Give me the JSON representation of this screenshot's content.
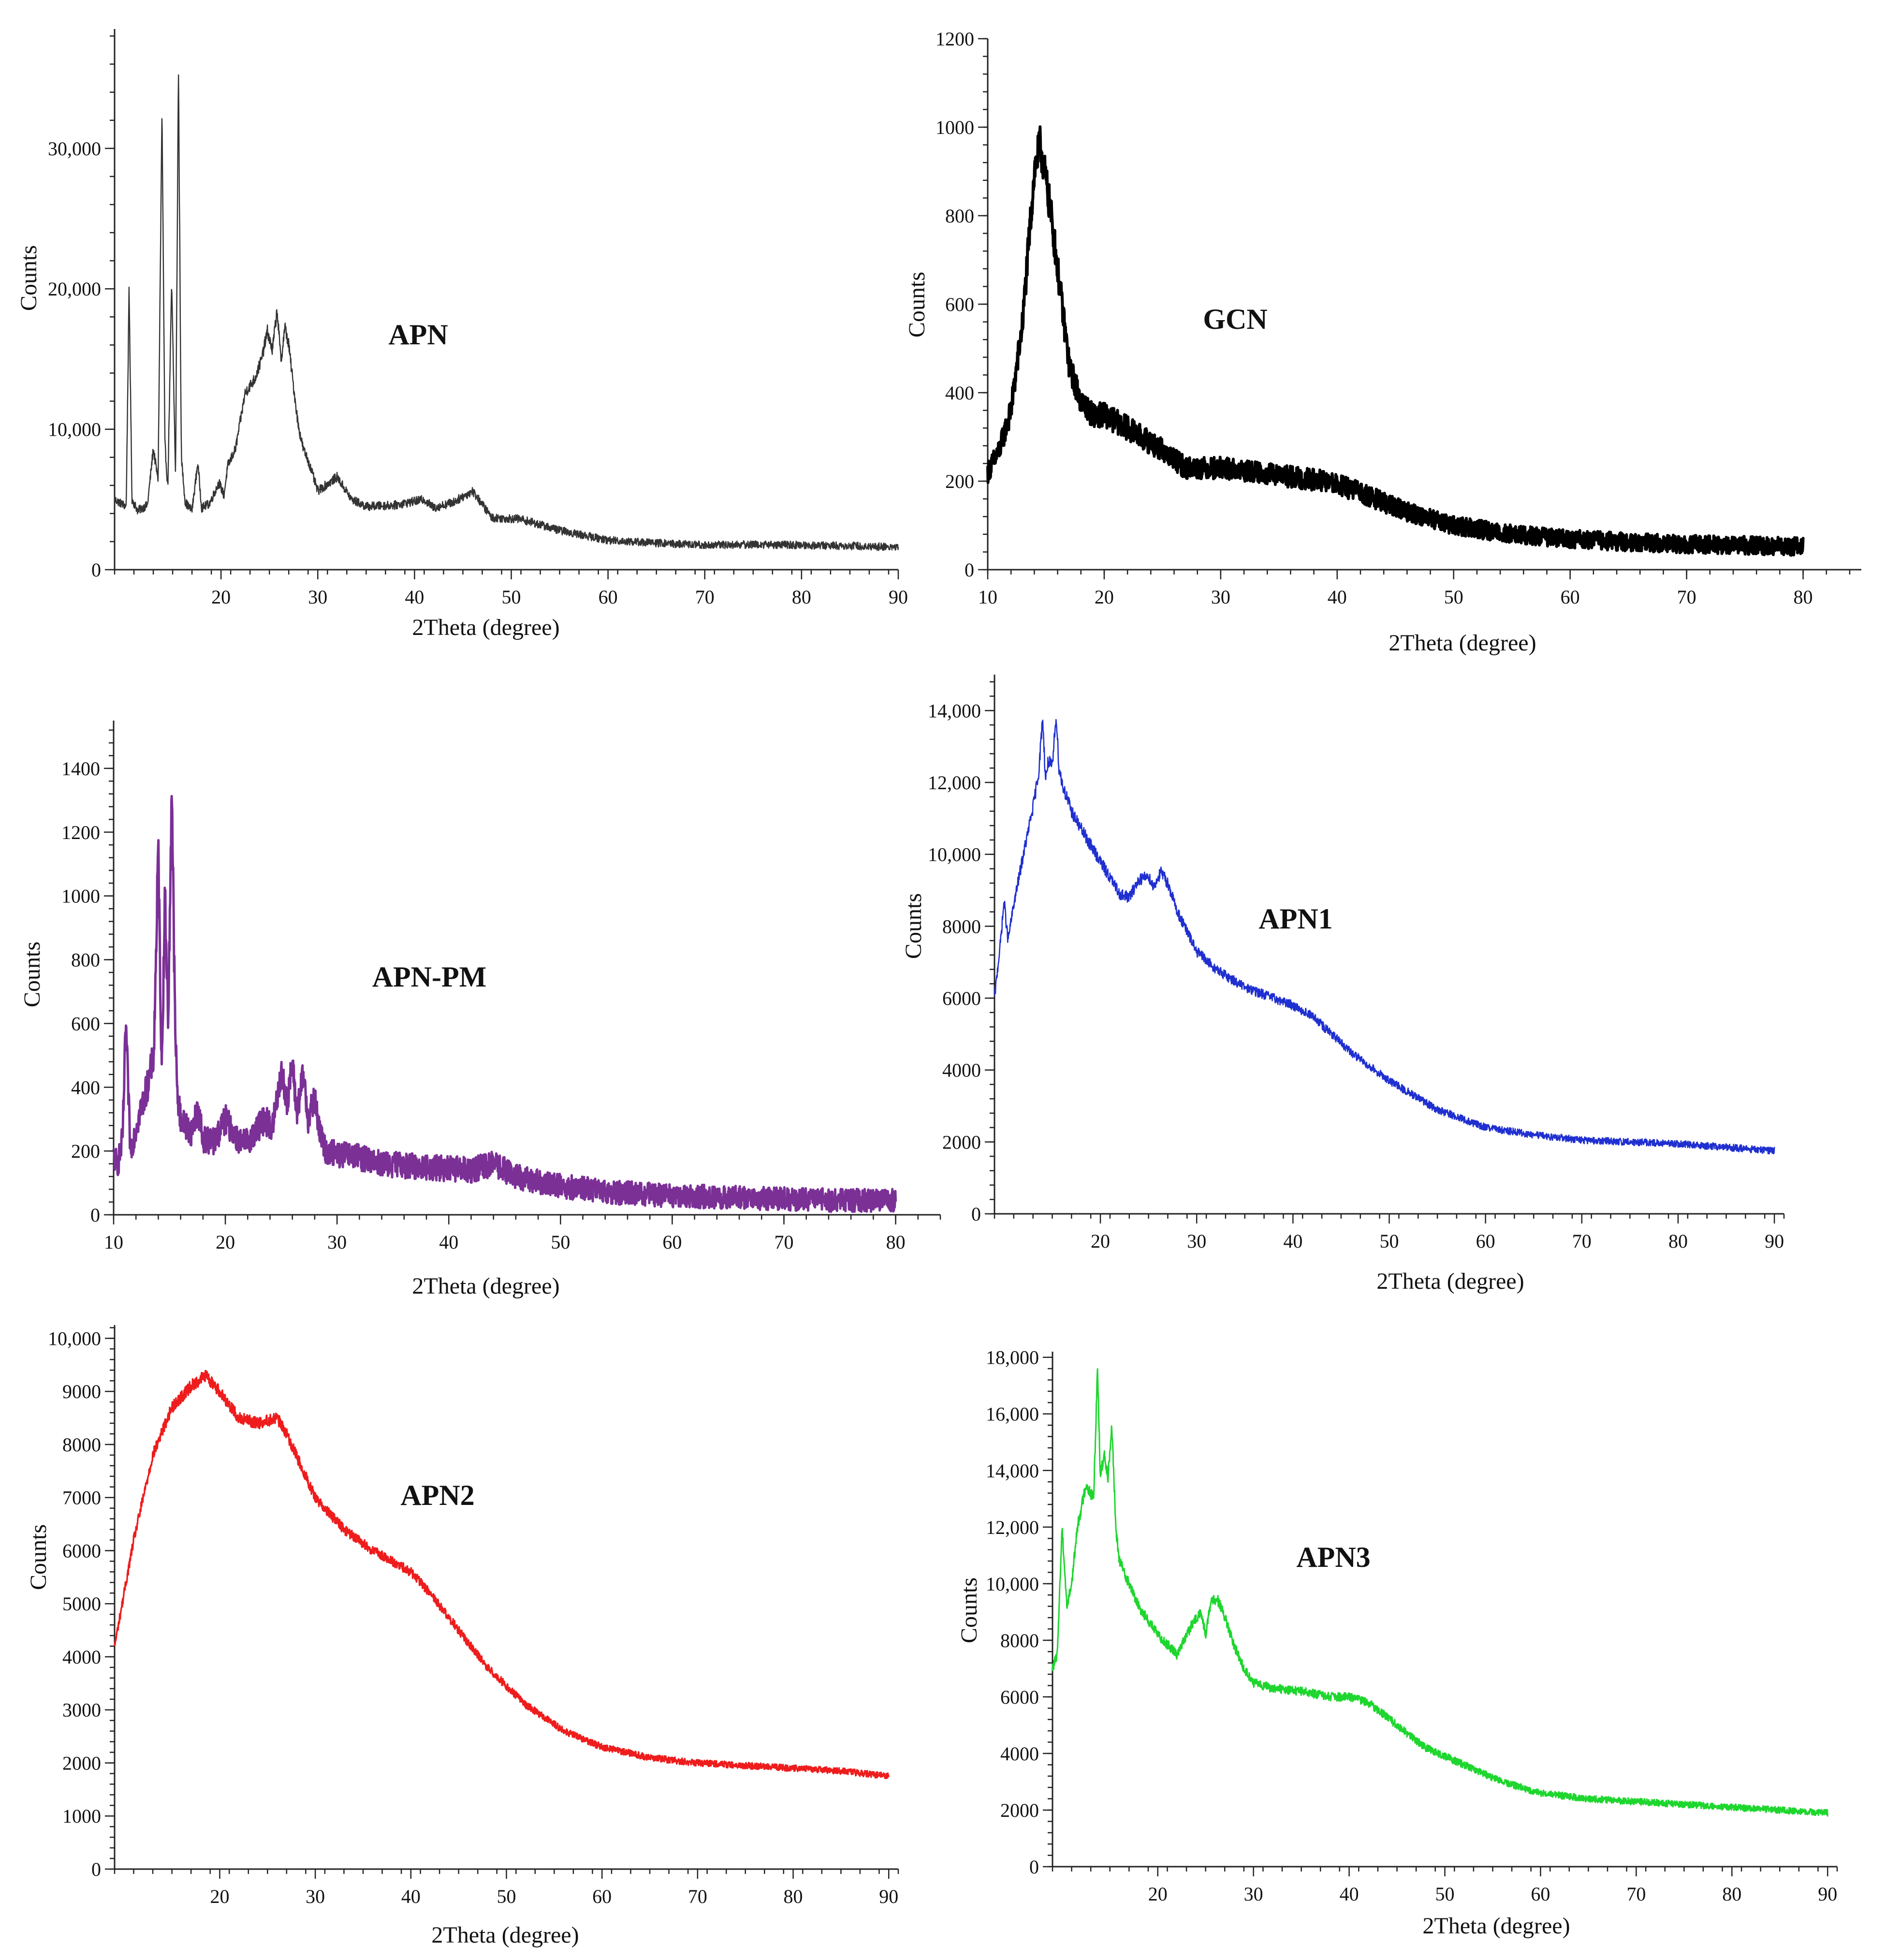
{
  "chart_data": [
    {
      "type": "line",
      "title": "APN",
      "xlabel": "2Theta (degree)",
      "ylabel": "Counts",
      "xlim": [
        9,
        90
      ],
      "ylim": [
        0,
        38500
      ],
      "xticks": [
        20,
        30,
        40,
        50,
        60,
        70,
        80,
        90
      ],
      "yticks": [
        0,
        10000,
        20000,
        30000
      ],
      "yticklabels": [
        "0",
        "10,000",
        "20,000",
        "30,000"
      ],
      "color": "#333333",
      "noise": 0.015,
      "series": [
        {
          "name": "APN",
          "x": [
            9,
            10.2,
            10.5,
            10.8,
            11.4,
            12.4,
            13.0,
            13.5,
            13.9,
            14.2,
            14.5,
            14.9,
            15.3,
            15.6,
            15.9,
            16.3,
            17.0,
            17.6,
            18.0,
            18.8,
            19.8,
            20.3,
            20.7,
            21.5,
            22.5,
            23.5,
            24.2,
            24.8,
            25.3,
            25.8,
            26.2,
            26.6,
            27.0,
            27.5,
            28.0,
            28.5,
            29.0,
            30.0,
            32.0,
            33.5,
            35,
            38,
            41,
            42,
            44,
            46,
            48,
            51,
            55,
            60,
            65,
            70,
            75,
            80,
            85,
            90
          ],
          "y": [
            5000,
            4500,
            20000,
            5000,
            4200,
            4600,
            8600,
            6400,
            32800,
            9000,
            5800,
            20400,
            6600,
            35900,
            8000,
            4800,
            4200,
            7600,
            4400,
            4700,
            6200,
            5300,
            7400,
            8600,
            12600,
            13600,
            15000,
            17000,
            15600,
            18500,
            14800,
            17300,
            16000,
            13000,
            10200,
            8600,
            7800,
            5600,
            6600,
            5000,
            4500,
            4600,
            5000,
            4400,
            4800,
            5600,
            3700,
            3600,
            2800,
            2100,
            1900,
            1750,
            1800,
            1750,
            1700,
            1600
          ]
        }
      ]
    },
    {
      "type": "line",
      "title": "GCN",
      "xlabel": "2Theta (degree)",
      "ylabel": "Counts",
      "xlim": [
        10,
        85
      ],
      "ylim": [
        0,
        1200
      ],
      "xticks": [
        10,
        20,
        30,
        40,
        50,
        60,
        70,
        80
      ],
      "yticks": [
        0,
        200,
        400,
        600,
        800,
        1000,
        1200
      ],
      "yticklabels": [
        "0",
        "200",
        "400",
        "600",
        "800",
        "1000",
        "1200"
      ],
      "color": "#000000",
      "noise": 0.035,
      "series": [
        {
          "name": "GCN",
          "x": [
            10,
            11,
            12,
            13,
            13.5,
            14,
            14.5,
            15,
            15.5,
            16,
            17,
            18,
            19,
            20,
            22,
            25,
            27,
            30,
            33,
            36,
            39,
            42,
            45,
            50,
            55,
            60,
            65,
            70,
            75,
            80
          ],
          "y": [
            220,
            270,
            360,
            560,
            730,
            900,
            960,
            880,
            790,
            680,
            460,
            380,
            350,
            350,
            320,
            270,
            230,
            230,
            220,
            210,
            200,
            175,
            140,
            100,
            80,
            70,
            62,
            58,
            55,
            52
          ]
        }
      ]
    },
    {
      "type": "line",
      "title": "APN-PM",
      "xlabel": "2Theta (degree)",
      "ylabel": "Counts",
      "xlim": [
        10,
        84
      ],
      "ylim": [
        0,
        1550
      ],
      "xticks": [
        10,
        20,
        30,
        40,
        50,
        60,
        70,
        80
      ],
      "yticks": [
        0,
        200,
        400,
        600,
        800,
        1000,
        1200,
        1400
      ],
      "yticklabels": [
        "0",
        "200",
        "400",
        "600",
        "800",
        "1000",
        "1200",
        "1400"
      ],
      "color": "#7b3096",
      "noise": 0.05,
      "series": [
        {
          "name": "APN-PM",
          "x": [
            10,
            10.4,
            10.8,
            11.1,
            11.5,
            12.2,
            13,
            13.6,
            14.0,
            14.3,
            14.6,
            14.9,
            15.2,
            15.5,
            15.7,
            16.0,
            16.4,
            17.0,
            17.5,
            18.0,
            19.0,
            20.0,
            20.5,
            21.5,
            22.5,
            23.5,
            24.2,
            25.0,
            25.5,
            26.0,
            26.4,
            27.0,
            27.4,
            28.0,
            28.5,
            29.0,
            30,
            32,
            34,
            38,
            42,
            44,
            46,
            50,
            55,
            60,
            65,
            70,
            75,
            80
          ],
          "y": [
            180,
            160,
            240,
            600,
            200,
            300,
            400,
            500,
            1150,
            450,
            1000,
            600,
            1370,
            600,
            380,
            300,
            280,
            260,
            330,
            240,
            230,
            300,
            270,
            220,
            250,
            300,
            270,
            450,
            350,
            470,
            320,
            440,
            300,
            360,
            250,
            200,
            190,
            180,
            160,
            150,
            140,
            160,
            120,
            90,
            70,
            60,
            55,
            50,
            45,
            45
          ]
        }
      ]
    },
    {
      "type": "line",
      "title": "APN1",
      "xlabel": "2Theta (degree)",
      "ylabel": "Counts",
      "xlim": [
        9,
        91
      ],
      "ylim": [
        0,
        15000
      ],
      "xticks": [
        20,
        30,
        40,
        50,
        60,
        70,
        80,
        90
      ],
      "yticks": [
        0,
        2000,
        4000,
        6000,
        8000,
        10000,
        12000,
        14000
      ],
      "yticklabels": [
        "0",
        "2000",
        "4000",
        "6000",
        "8000",
        "10,000",
        "12,000",
        "14,000"
      ],
      "color": "#1f2fd0",
      "noise": 0.012,
      "series": [
        {
          "name": "APN1",
          "x": [
            9,
            9.6,
            10.0,
            10.4,
            11,
            12,
            13,
            13.6,
            14.0,
            14.3,
            14.6,
            15.0,
            15.4,
            15.7,
            16.1,
            17,
            18,
            20,
            22,
            23,
            24,
            25,
            25.5,
            26.3,
            27,
            28,
            30,
            32,
            35,
            38,
            40,
            42,
            44,
            46,
            50,
            55,
            60,
            65,
            70,
            75,
            80,
            85,
            90
          ],
          "y": [
            6000,
            7500,
            8700,
            7600,
            8600,
            10000,
            11300,
            12300,
            13800,
            12100,
            12600,
            12400,
            13900,
            12400,
            11900,
            11200,
            10700,
            9800,
            8900,
            8800,
            9300,
            9400,
            9100,
            9500,
            9200,
            8400,
            7300,
            6800,
            6300,
            6000,
            5800,
            5500,
            5000,
            4500,
            3700,
            2900,
            2400,
            2200,
            2050,
            2000,
            1950,
            1850,
            1750
          ]
        }
      ]
    },
    {
      "type": "line",
      "title": "APN2",
      "xlabel": "2Theta (degree)",
      "ylabel": "Counts",
      "xlim": [
        9,
        91
      ],
      "ylim": [
        0,
        10250
      ],
      "xticks": [
        20,
        30,
        40,
        50,
        60,
        70,
        80,
        90
      ],
      "yticks": [
        0,
        1000,
        2000,
        3000,
        4000,
        5000,
        6000,
        7000,
        8000,
        9000,
        10000
      ],
      "yticklabels": [
        "0",
        "1000",
        "2000",
        "3000",
        "4000",
        "5000",
        "6000",
        "7000",
        "8000",
        "9000",
        "10,000"
      ],
      "color": "#ee1c1c",
      "noise": 0.01,
      "series": [
        {
          "name": "APN2",
          "x": [
            9,
            11,
            13,
            15,
            17,
            18.5,
            20,
            22,
            24,
            26,
            27,
            28,
            30,
            33,
            36,
            40,
            42,
            45,
            48,
            52,
            56,
            60,
            65,
            70,
            75,
            80,
            85,
            90
          ],
          "y": [
            4200,
            6200,
            7800,
            8700,
            9100,
            9300,
            9000,
            8500,
            8400,
            8500,
            8200,
            7800,
            7000,
            6400,
            6000,
            5600,
            5200,
            4500,
            3800,
            3100,
            2600,
            2300,
            2100,
            2000,
            1950,
            1900,
            1850,
            1750
          ]
        }
      ]
    },
    {
      "type": "line",
      "title": "APN3",
      "xlabel": "2Theta (degree)",
      "ylabel": "Counts",
      "xlim": [
        9,
        91
      ],
      "ylim": [
        0,
        18200
      ],
      "xticks": [
        20,
        30,
        40,
        50,
        60,
        70,
        80,
        90
      ],
      "yticks": [
        0,
        2000,
        4000,
        6000,
        8000,
        10000,
        12000,
        14000,
        16000,
        18000
      ],
      "yticklabels": [
        "0",
        "2000",
        "4000",
        "6000",
        "8000",
        "10,000",
        "12,000",
        "14,000",
        "16,000",
        "18,000"
      ],
      "color": "#1ed62e",
      "noise": 0.012,
      "series": [
        {
          "name": "APN3",
          "x": [
            9,
            9.5,
            10,
            10.5,
            11,
            11.6,
            12.5,
            13.3,
            13.7,
            14.0,
            14.4,
            14.8,
            15.2,
            15.6,
            16,
            17,
            18,
            20,
            22,
            23.5,
            24.5,
            25.0,
            25.5,
            26.2,
            27,
            28,
            29,
            30,
            32,
            35,
            38,
            40,
            42,
            45,
            48,
            52,
            56,
            60,
            65,
            70,
            75,
            80,
            85,
            90
          ],
          "y": [
            7000,
            7500,
            12000,
            9200,
            10000,
            12000,
            13500,
            13000,
            17700,
            13800,
            14600,
            13800,
            15600,
            12000,
            10800,
            10000,
            9200,
            8200,
            7500,
            8500,
            9000,
            8200,
            9300,
            9500,
            8800,
            7800,
            7000,
            6500,
            6300,
            6200,
            6000,
            6000,
            5800,
            5000,
            4200,
            3600,
            3000,
            2600,
            2400,
            2300,
            2200,
            2100,
            2000,
            1900
          ]
        }
      ]
    }
  ]
}
